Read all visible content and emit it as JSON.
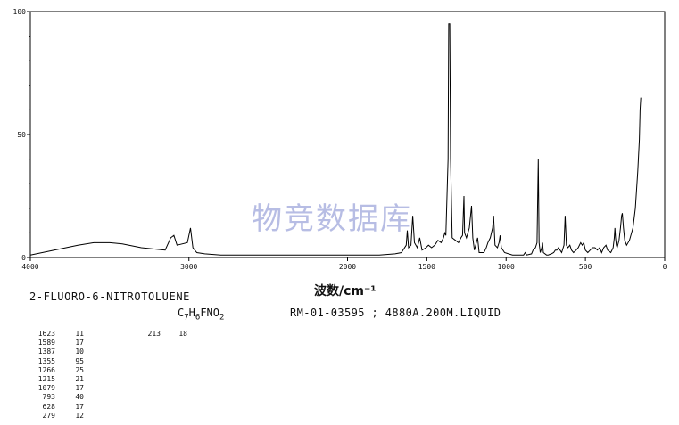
{
  "chart_data": {
    "type": "line",
    "title": "",
    "xlabel": "波数/cm⁻¹",
    "ylabel": "",
    "x_reversed": true,
    "xlim": [
      4000,
      0
    ],
    "ylim": [
      0,
      100
    ],
    "x_ticks": [
      4000,
      3000,
      2000,
      1500,
      1000,
      500,
      0
    ],
    "x_tick_labels": [
      "4000",
      "3000",
      "2000",
      "1500",
      "1000",
      "500",
      "0"
    ],
    "y_ticks": [
      0,
      50,
      100
    ],
    "y_tick_labels": [
      "0",
      "50",
      "100"
    ],
    "line_color": "#000000",
    "series": [
      {
        "points": [
          [
            4000,
            1
          ],
          [
            3850,
            3
          ],
          [
            3700,
            5
          ],
          [
            3600,
            6
          ],
          [
            3500,
            6
          ],
          [
            3420,
            5.5
          ],
          [
            3300,
            4
          ],
          [
            3150,
            3
          ],
          [
            3115,
            8
          ],
          [
            3095,
            9
          ],
          [
            3075,
            5
          ],
          [
            3010,
            6
          ],
          [
            2990,
            12
          ],
          [
            2975,
            4
          ],
          [
            2950,
            2
          ],
          [
            2900,
            1.5
          ],
          [
            2800,
            1
          ],
          [
            2600,
            1
          ],
          [
            2400,
            1
          ],
          [
            2200,
            1
          ],
          [
            2000,
            1
          ],
          [
            1900,
            1
          ],
          [
            1800,
            1
          ],
          [
            1700,
            1.5
          ],
          [
            1660,
            2
          ],
          [
            1630,
            5
          ],
          [
            1623,
            11
          ],
          [
            1615,
            4
          ],
          [
            1600,
            5
          ],
          [
            1589,
            17
          ],
          [
            1578,
            6
          ],
          [
            1560,
            4
          ],
          [
            1545,
            8
          ],
          [
            1530,
            3
          ],
          [
            1505,
            4
          ],
          [
            1490,
            5
          ],
          [
            1470,
            4
          ],
          [
            1450,
            5
          ],
          [
            1430,
            7
          ],
          [
            1410,
            6
          ],
          [
            1395,
            8
          ],
          [
            1387,
            10
          ],
          [
            1380,
            9
          ],
          [
            1366,
            40
          ],
          [
            1362,
            95
          ],
          [
            1355,
            95
          ],
          [
            1350,
            40
          ],
          [
            1340,
            8
          ],
          [
            1320,
            7
          ],
          [
            1300,
            6
          ],
          [
            1285,
            8
          ],
          [
            1275,
            9
          ],
          [
            1266,
            25
          ],
          [
            1262,
            10
          ],
          [
            1250,
            8
          ],
          [
            1232,
            12
          ],
          [
            1218,
            21
          ],
          [
            1210,
            8
          ],
          [
            1200,
            3
          ],
          [
            1180,
            8
          ],
          [
            1170,
            2
          ],
          [
            1140,
            2
          ],
          [
            1125,
            4
          ],
          [
            1115,
            6
          ],
          [
            1100,
            8
          ],
          [
            1085,
            12
          ],
          [
            1079,
            17
          ],
          [
            1070,
            5
          ],
          [
            1055,
            4
          ],
          [
            1045,
            6
          ],
          [
            1038,
            9
          ],
          [
            1030,
            4
          ],
          [
            1010,
            2
          ],
          [
            960,
            1
          ],
          [
            890,
            1
          ],
          [
            880,
            2
          ],
          [
            870,
            1
          ],
          [
            840,
            1.5
          ],
          [
            830,
            3
          ],
          [
            815,
            4
          ],
          [
            805,
            6
          ],
          [
            797,
            40
          ],
          [
            792,
            6
          ],
          [
            785,
            2
          ],
          [
            775,
            4
          ],
          [
            770,
            6
          ],
          [
            765,
            2
          ],
          [
            745,
            1
          ],
          [
            735,
            1
          ],
          [
            715,
            1.5
          ],
          [
            700,
            2
          ],
          [
            690,
            3
          ],
          [
            680,
            3
          ],
          [
            670,
            4
          ],
          [
            660,
            3
          ],
          [
            650,
            2
          ],
          [
            635,
            5
          ],
          [
            628,
            17
          ],
          [
            620,
            5
          ],
          [
            610,
            4
          ],
          [
            598,
            5
          ],
          [
            588,
            3
          ],
          [
            575,
            2
          ],
          [
            558,
            3
          ],
          [
            545,
            4
          ],
          [
            530,
            6
          ],
          [
            520,
            5
          ],
          [
            510,
            6
          ],
          [
            500,
            3
          ],
          [
            485,
            2
          ],
          [
            470,
            3
          ],
          [
            455,
            4
          ],
          [
            440,
            4
          ],
          [
            425,
            3
          ],
          [
            410,
            4
          ],
          [
            398,
            2
          ],
          [
            385,
            4
          ],
          [
            370,
            5
          ],
          [
            360,
            3
          ],
          [
            340,
            2
          ],
          [
            325,
            4
          ],
          [
            318,
            8
          ],
          [
            314,
            12
          ],
          [
            310,
            8
          ],
          [
            305,
            5
          ],
          [
            300,
            4
          ],
          [
            288,
            7
          ],
          [
            279,
            12
          ],
          [
            272,
            17
          ],
          [
            267,
            18
          ],
          [
            260,
            12
          ],
          [
            252,
            7
          ],
          [
            240,
            5
          ],
          [
            222,
            7
          ],
          [
            200,
            12
          ],
          [
            185,
            20
          ],
          [
            170,
            35
          ],
          [
            160,
            48
          ],
          [
            155,
            60
          ],
          [
            151,
            65
          ]
        ]
      }
    ]
  },
  "compound_name": "2-FLUORO-6-NITROTOLUENE",
  "formula": {
    "c": "C",
    "c_n": "7",
    "h": "H",
    "h_n": "6",
    "fn": "FNO",
    "o_n": "2"
  },
  "spectrum_id": "RM-01-03595 ; 4880A.200M.LIQUID",
  "watermark": "物竞数据库",
  "peak_table": [
    {
      "wn": "1623",
      "tr": "11"
    },
    {
      "wn": "1589",
      "tr": "17"
    },
    {
      "wn": "1387",
      "tr": "10"
    },
    {
      "wn": "1355",
      "tr": "95"
    },
    {
      "wn": "1266",
      "tr": "25"
    },
    {
      "wn": "1215",
      "tr": "21"
    },
    {
      "wn": "1079",
      "tr": "17"
    },
    {
      "wn": "793",
      "tr": "40"
    },
    {
      "wn": "628",
      "tr": "17"
    },
    {
      "wn": "279",
      "tr": "12"
    }
  ],
  "peak_extra": {
    "wn": "213",
    "tr": "18"
  }
}
